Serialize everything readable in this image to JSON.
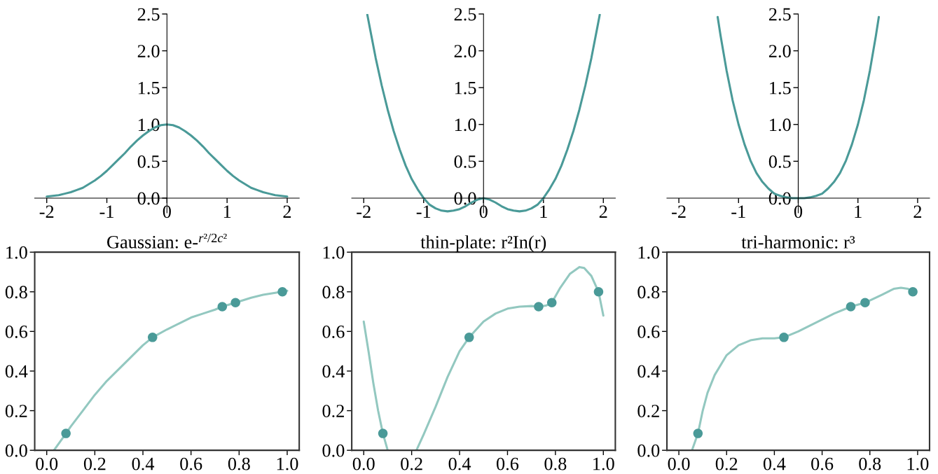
{
  "chart_data": [
    {
      "type": "line",
      "x": [
        -2,
        -1.9,
        -1.8,
        -1.7,
        -1.6,
        -1.5,
        -1.4,
        -1.3,
        -1.2,
        -1.1,
        -1,
        -0.9,
        -0.8,
        -0.7,
        -0.6,
        -0.5,
        -0.4,
        -0.3,
        -0.2,
        -0.1,
        0,
        0.1,
        0.2,
        0.3,
        0.4,
        0.5,
        0.6,
        0.7,
        0.8,
        0.9,
        1,
        1.1,
        1.2,
        1.3,
        1.4,
        1.5,
        1.6,
        1.7,
        1.8,
        1.9,
        2
      ],
      "series": [
        {
          "color": "#4a9a98",
          "values": [
            0.02,
            0.03,
            0.04,
            0.06,
            0.08,
            0.11,
            0.14,
            0.19,
            0.24,
            0.3,
            0.37,
            0.45,
            0.53,
            0.61,
            0.7,
            0.78,
            0.85,
            0.91,
            0.96,
            0.99,
            1.0,
            0.99,
            0.96,
            0.91,
            0.85,
            0.78,
            0.7,
            0.61,
            0.53,
            0.45,
            0.37,
            0.3,
            0.24,
            0.19,
            0.14,
            0.11,
            0.08,
            0.06,
            0.04,
            0.03,
            0.02
          ]
        }
      ],
      "xlim": [
        -2.2,
        2.2
      ],
      "ylim": [
        -0.2,
        2.5
      ],
      "xticks": [
        -2,
        -1,
        0,
        1,
        2
      ],
      "yticks": [
        {
          "value": 0,
          "label": "0.0"
        },
        {
          "value": 0.5,
          "label": "0.5"
        },
        {
          "value": 1,
          "label": "1.0"
        },
        {
          "value": 1.5,
          "label": "1.5"
        },
        {
          "value": 2,
          "label": "2.0"
        },
        {
          "value": 2.5,
          "label": "2.5"
        }
      ],
      "grid": false
    },
    {
      "type": "line",
      "x": [
        -1.94,
        -1.9,
        -1.8,
        -1.7,
        -1.6,
        -1.5,
        -1.4,
        -1.3,
        -1.2,
        -1.1,
        -1,
        -0.9,
        -0.8,
        -0.7,
        -0.6,
        -0.5,
        -0.4,
        -0.3,
        -0.2,
        -0.1,
        0,
        0.1,
        0.2,
        0.3,
        0.4,
        0.5,
        0.6,
        0.7,
        0.8,
        0.9,
        1,
        1.1,
        1.2,
        1.3,
        1.4,
        1.5,
        1.6,
        1.7,
        1.8,
        1.9,
        1.94
      ],
      "series": [
        {
          "color": "#4a9a98",
          "values": [
            2.49,
            2.32,
            1.9,
            1.53,
            1.2,
            0.91,
            0.66,
            0.44,
            0.26,
            0.12,
            0,
            -0.09,
            -0.14,
            -0.17,
            -0.18,
            -0.17,
            -0.15,
            -0.11,
            -0.06,
            -0.02,
            0,
            -0.02,
            -0.06,
            -0.11,
            -0.15,
            -0.17,
            -0.18,
            -0.17,
            -0.14,
            -0.09,
            0,
            0.12,
            0.26,
            0.44,
            0.66,
            0.91,
            1.2,
            1.53,
            1.9,
            2.32,
            2.49
          ]
        }
      ],
      "xlim": [
        -2.2,
        2.2
      ],
      "ylim": [
        -0.2,
        2.5
      ],
      "xticks": [
        -2,
        -1,
        0,
        1,
        2
      ],
      "yticks": [
        {
          "value": 0,
          "label": "0.0"
        },
        {
          "value": 0.5,
          "label": "0.5"
        },
        {
          "value": 1,
          "label": "1.0"
        },
        {
          "value": 1.5,
          "label": "1.5"
        },
        {
          "value": 2,
          "label": "2.0"
        },
        {
          "value": 2.5,
          "label": "2.5"
        }
      ],
      "grid": false
    },
    {
      "type": "line",
      "x": [
        -1.35,
        -1.3,
        -1.2,
        -1.1,
        -1,
        -0.9,
        -0.8,
        -0.7,
        -0.6,
        -0.5,
        -0.4,
        -0.3,
        -0.2,
        -0.1,
        0,
        0.1,
        0.2,
        0.3,
        0.4,
        0.5,
        0.6,
        0.7,
        0.8,
        0.9,
        1,
        1.1,
        1.2,
        1.3,
        1.35
      ],
      "series": [
        {
          "color": "#4a9a98",
          "values": [
            2.46,
            2.2,
            1.73,
            1.33,
            1.0,
            0.73,
            0.51,
            0.34,
            0.22,
            0.13,
            0.06,
            0.03,
            0.01,
            0,
            0,
            0,
            0.01,
            0.03,
            0.06,
            0.13,
            0.22,
            0.34,
            0.51,
            0.73,
            1.0,
            1.33,
            1.73,
            2.2,
            2.46
          ]
        }
      ],
      "xlim": [
        -2.2,
        2.2
      ],
      "ylim": [
        -0.2,
        2.5
      ],
      "xticks": [
        -2,
        -1,
        0,
        1,
        2
      ],
      "yticks": [
        {
          "value": 0,
          "label": "0.0"
        },
        {
          "value": 0.5,
          "label": "0.5"
        },
        {
          "value": 1,
          "label": "1.0"
        },
        {
          "value": 1.5,
          "label": "1.5"
        },
        {
          "value": 2,
          "label": "2.0"
        },
        {
          "value": 2.5,
          "label": "2.5"
        }
      ],
      "grid": false
    },
    {
      "type": "line",
      "title": "Gaussian: e-$^{r²/2c²}$",
      "series": [
        {
          "type": "line",
          "color": "#93c8c0",
          "x": [
            0.03,
            0.08,
            0.1,
            0.15,
            0.2,
            0.25,
            0.3,
            0.35,
            0.4,
            0.44,
            0.5,
            0.55,
            0.6,
            0.65,
            0.7,
            0.73,
            0.785,
            0.85,
            0.9,
            0.95,
            1.0
          ],
          "values": [
            0,
            0.085,
            0.12,
            0.2,
            0.28,
            0.35,
            0.41,
            0.47,
            0.53,
            0.57,
            0.61,
            0.64,
            0.67,
            0.69,
            0.71,
            0.725,
            0.745,
            0.77,
            0.785,
            0.795,
            0.805
          ]
        },
        {
          "type": "scatter",
          "color": "#4a9a98",
          "marker": "circle",
          "x": [
            0.08,
            0.44,
            0.73,
            0.785,
            0.98
          ],
          "values": [
            0.085,
            0.57,
            0.725,
            0.745,
            0.8
          ]
        }
      ],
      "xlim": [
        -0.05,
        1.05
      ],
      "ylim": [
        0,
        1
      ],
      "xticks": [
        {
          "value": 0,
          "label": "0.0"
        },
        {
          "value": 0.2,
          "label": "0.2"
        },
        {
          "value": 0.4,
          "label": "0.4"
        },
        {
          "value": 0.6,
          "label": "0.6"
        },
        {
          "value": 0.8,
          "label": "0.8"
        },
        {
          "value": 1,
          "label": "1.0"
        }
      ],
      "yticks": [
        {
          "value": 0,
          "label": "0.0"
        },
        {
          "value": 0.2,
          "label": "0.2"
        },
        {
          "value": 0.4,
          "label": "0.4"
        },
        {
          "value": 0.6,
          "label": "0.6"
        },
        {
          "value": 0.8,
          "label": "0.8"
        },
        {
          "value": 1,
          "label": "1.0"
        }
      ],
      "grid": false
    },
    {
      "type": "line",
      "title": "thin-plate: r²In(r)",
      "series": [
        {
          "type": "line",
          "color": "#93c8c0",
          "x": [
            0,
            0.02,
            0.04,
            0.06,
            0.08,
            0.1,
            0.16,
            0.22,
            0.25,
            0.3,
            0.35,
            0.4,
            0.44,
            0.5,
            0.55,
            0.6,
            0.65,
            0.7,
            0.73,
            0.76,
            0.785,
            0.82,
            0.86,
            0.9,
            0.92,
            0.95,
            0.98,
            1.0
          ],
          "values": [
            0.65,
            0.5,
            0.34,
            0.2,
            0.085,
            0,
            null,
            0,
            0.08,
            0.22,
            0.37,
            0.5,
            0.57,
            0.65,
            0.69,
            0.715,
            0.725,
            0.728,
            0.725,
            0.73,
            0.745,
            0.82,
            0.89,
            0.925,
            0.92,
            0.88,
            0.8,
            0.68
          ]
        },
        {
          "type": "scatter",
          "color": "#4a9a98",
          "marker": "circle",
          "x": [
            0.08,
            0.44,
            0.73,
            0.785,
            0.98
          ],
          "values": [
            0.085,
            0.57,
            0.725,
            0.745,
            0.8
          ]
        }
      ],
      "xlim": [
        -0.05,
        1.05
      ],
      "ylim": [
        0,
        1
      ],
      "xticks": [
        {
          "value": 0,
          "label": "0.0"
        },
        {
          "value": 0.2,
          "label": "0.2"
        },
        {
          "value": 0.4,
          "label": "0.4"
        },
        {
          "value": 0.6,
          "label": "0.6"
        },
        {
          "value": 0.8,
          "label": "0.8"
        },
        {
          "value": 1,
          "label": "1.0"
        }
      ],
      "yticks": [
        {
          "value": 0,
          "label": "0.0"
        },
        {
          "value": 0.2,
          "label": "0.2"
        },
        {
          "value": 0.4,
          "label": "0.4"
        },
        {
          "value": 0.6,
          "label": "0.6"
        },
        {
          "value": 0.8,
          "label": "0.8"
        },
        {
          "value": 1,
          "label": "1.0"
        }
      ],
      "grid": false
    },
    {
      "type": "line",
      "title": "tri-harmonic: r³",
      "series": [
        {
          "type": "line",
          "color": "#93c8c0",
          "x": [
            0.055,
            0.08,
            0.1,
            0.12,
            0.15,
            0.2,
            0.25,
            0.3,
            0.35,
            0.4,
            0.44,
            0.5,
            0.55,
            0.6,
            0.65,
            0.72,
            0.78,
            0.85,
            0.9,
            0.93,
            0.96,
            0.98
          ],
          "values": [
            0,
            0.085,
            0.2,
            0.29,
            0.38,
            0.48,
            0.53,
            0.555,
            0.565,
            0.565,
            0.57,
            0.6,
            0.63,
            0.66,
            0.69,
            0.725,
            0.745,
            0.785,
            0.815,
            0.82,
            0.815,
            0.8
          ]
        },
        {
          "type": "scatter",
          "color": "#4a9a98",
          "marker": "circle",
          "x": [
            0.08,
            0.44,
            0.72,
            0.78,
            0.98
          ],
          "values": [
            0.085,
            0.57,
            0.725,
            0.745,
            0.8
          ]
        }
      ],
      "xlim": [
        -0.05,
        1.05
      ],
      "ylim": [
        0,
        1
      ],
      "xticks": [
        {
          "value": 0,
          "label": "0.0"
        },
        {
          "value": 0.2,
          "label": "0.2"
        },
        {
          "value": 0.4,
          "label": "0.4"
        },
        {
          "value": 0.6,
          "label": "0.6"
        },
        {
          "value": 0.8,
          "label": "0.8"
        },
        {
          "value": 1,
          "label": "1.0"
        }
      ],
      "yticks": [
        {
          "value": 0,
          "label": "0.0"
        },
        {
          "value": 0.2,
          "label": "0.2"
        },
        {
          "value": 0.4,
          "label": "0.4"
        },
        {
          "value": 0.6,
          "label": "0.6"
        },
        {
          "value": 0.8,
          "label": "0.8"
        },
        {
          "value": 1,
          "label": "1.0"
        }
      ],
      "grid": false
    }
  ]
}
